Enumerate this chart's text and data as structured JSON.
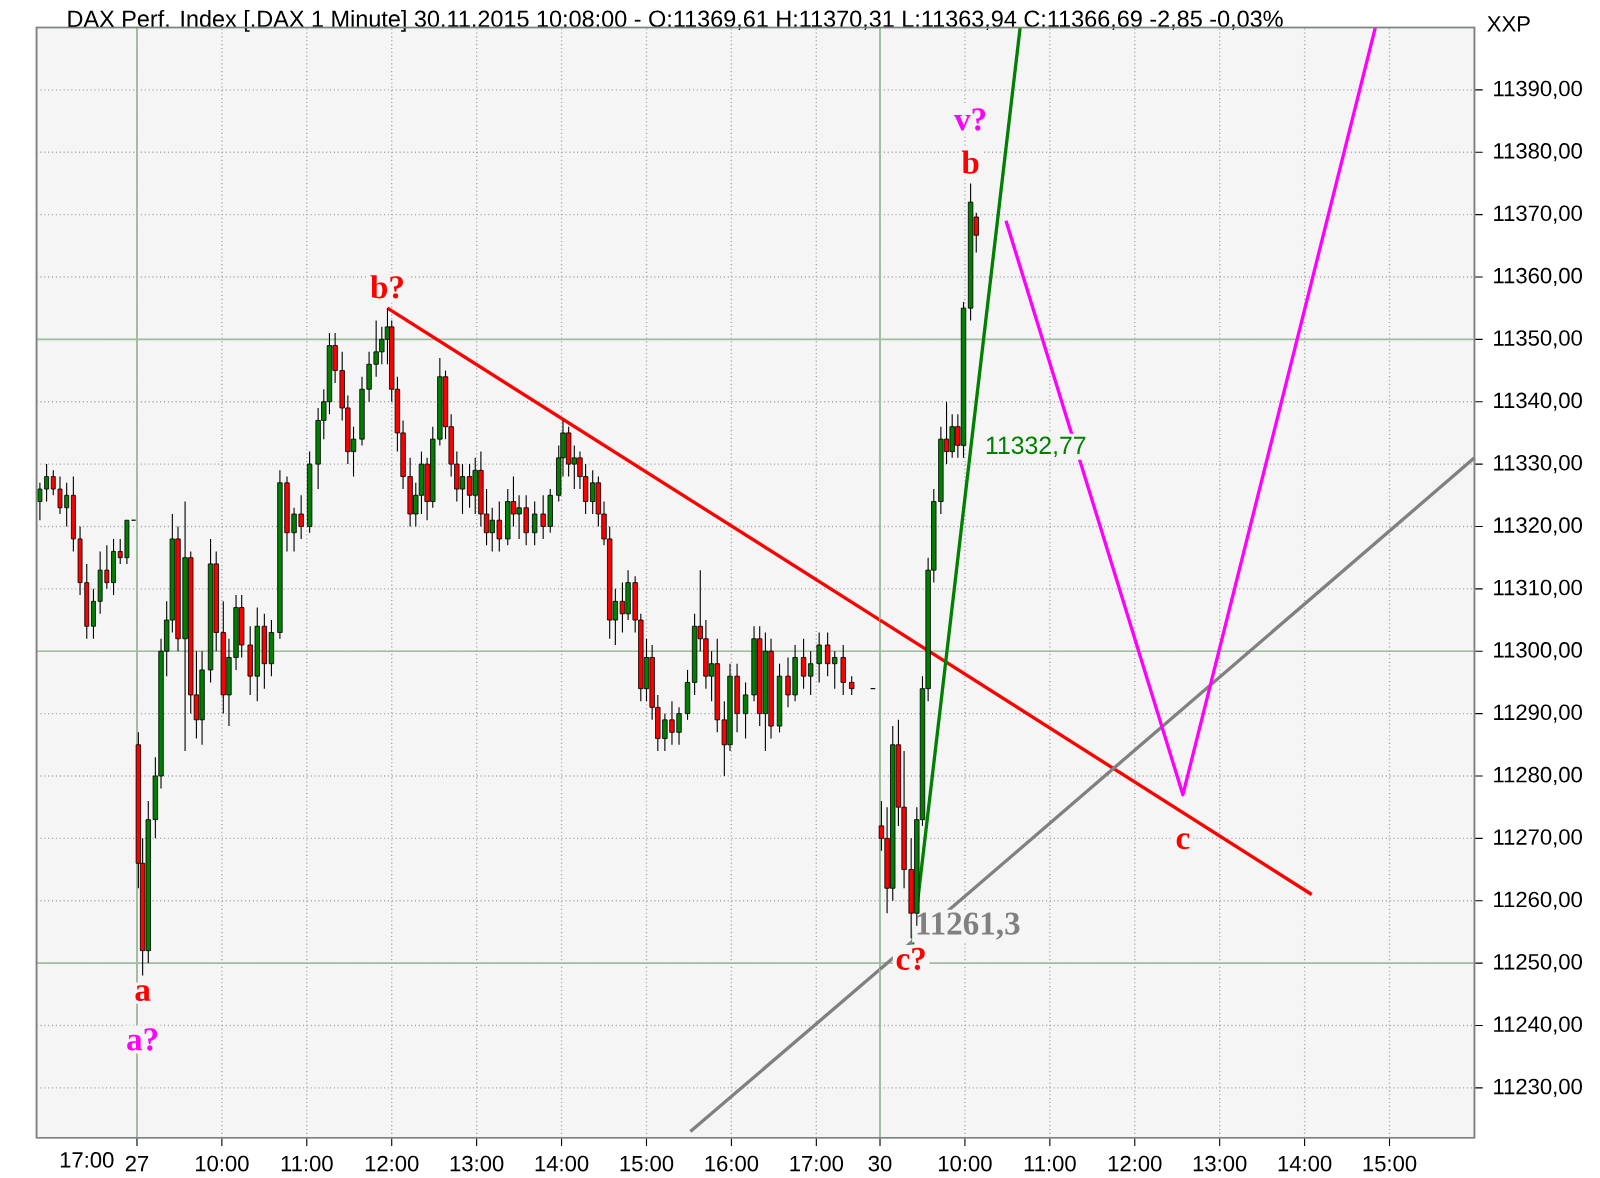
{
  "chart_data": [
    {
      "type": "candlestick",
      "title": "DAX Perf. Index [.DAX  1 Minute] 30.11.2015 10:08:00 - O:11369,61 H:11370,31 L:11363,94 C:11366,69 -2,85 -0,03%",
      "categories": [
        null,
        null,
        null,
        null,
        null,
        null,
        null,
        null,
        null,
        null,
        null,
        null,
        null,
        null,
        null
      ],
      "annotations": [
        "17:00"
      ],
      "ohlc": [
        [
          11324,
          11327,
          11321,
          11326
        ],
        [
          11326,
          11330,
          11324,
          11328
        ],
        [
          11328,
          11329,
          11325,
          11326
        ],
        [
          11326,
          11328,
          11322,
          11323
        ],
        [
          11323,
          11327,
          11320,
          11325
        ],
        [
          11325,
          11328,
          11316,
          11318
        ],
        [
          11318,
          11320,
          11309,
          11311
        ],
        [
          11311,
          11314,
          11302,
          11304
        ],
        [
          11304,
          11310,
          11302,
          11308
        ],
        [
          11308,
          11316,
          11306,
          11313
        ],
        [
          11313,
          11317,
          11310,
          11311
        ],
        [
          11311,
          11318,
          11309,
          11316
        ],
        [
          11316,
          11318,
          11314,
          11315
        ],
        [
          11315,
          11321,
          11314,
          11321
        ],
        [
          11321,
          11321,
          11321,
          11321
        ]
      ],
      "ylim": [
        11222,
        11400
      ],
      "yticks": [
        11230,
        11240,
        11250,
        11260,
        11270,
        11280,
        11290,
        11300,
        11310,
        11320,
        11330,
        11340,
        11350,
        11360,
        11370,
        11380,
        11390
      ],
      "tick_labels": false,
      "grid": "y"
    },
    {
      "type": "candlestick",
      "x": [
        "2015-11-27T09:01",
        "2015-11-27T09:04",
        "2015-11-27T09:08",
        "2015-11-27T09:13",
        "2015-11-27T09:17",
        "2015-11-27T09:21",
        "2015-11-27T09:25",
        "2015-11-27T09:29",
        "2015-11-27T09:34",
        "2015-11-27T09:38",
        "2015-11-27T09:42",
        "2015-11-27T09:46",
        "2015-11-27T09:52",
        "2015-11-27T09:56",
        "2015-11-27T10:01",
        "2015-11-27T10:05",
        "2015-11-27T10:10",
        "2015-11-27T10:14",
        "2015-11-27T10:20",
        "2015-11-27T10:25",
        "2015-11-27T10:30",
        "2015-11-27T10:35",
        "2015-11-27T10:41",
        "2015-11-27T10:46",
        "2015-11-27T10:51",
        "2015-11-27T10:56",
        "2015-11-27T11:02",
        "2015-11-27T11:08",
        "2015-11-27T11:12",
        "2015-11-27T11:16",
        "2015-11-27T11:20",
        "2015-11-27T11:25",
        "2015-11-27T11:29",
        "2015-11-27T11:33",
        "2015-11-27T11:39",
        "2015-11-27T11:44",
        "2015-11-27T11:49",
        "2015-11-27T11:53",
        "2015-11-27T11:57",
        "2015-11-27T12:00",
        "2015-11-27T12:04",
        "2015-11-27T12:08",
        "2015-11-27T12:13",
        "2015-11-27T12:17",
        "2015-11-27T12:21",
        "2015-11-27T12:25",
        "2015-11-27T12:29",
        "2015-11-27T12:34",
        "2015-11-27T12:38",
        "2015-11-27T12:42",
        "2015-11-27T12:46",
        "2015-11-27T12:50",
        "2015-11-27T12:55",
        "2015-11-27T12:59",
        "2015-11-27T13:03",
        "2015-11-27T13:07",
        "2015-11-27T13:11",
        "2015-11-27T13:16",
        "2015-11-27T13:22",
        "2015-11-27T13:26",
        "2015-11-27T13:30",
        "2015-11-27T13:35",
        "2015-11-27T13:41",
        "2015-11-27T13:47",
        "2015-11-27T13:52",
        "2015-11-27T13:58",
        "2015-11-27T14:01",
        "2015-11-27T14:05",
        "2015-11-27T14:09",
        "2015-11-27T14:13",
        "2015-11-27T14:17",
        "2015-11-27T14:22",
        "2015-11-27T14:26",
        "2015-11-27T14:30",
        "2015-11-27T14:34",
        "2015-11-27T14:38",
        "2015-11-27T14:43",
        "2015-11-27T14:47",
        "2015-11-27T14:52",
        "2015-11-27T14:56",
        "2015-11-27T15:00",
        "2015-11-27T15:04",
        "2015-11-27T15:08",
        "2015-11-27T15:13",
        "2015-11-27T15:18",
        "2015-11-27T15:23",
        "2015-11-27T15:29",
        "2015-11-27T15:34",
        "2015-11-27T15:38",
        "2015-11-27T15:42",
        "2015-11-27T15:46",
        "2015-11-27T15:50",
        "2015-11-27T15:55",
        "2015-11-27T15:59",
        "2015-11-27T16:04",
        "2015-11-27T16:10",
        "2015-11-27T16:16",
        "2015-11-27T16:20",
        "2015-11-27T16:24",
        "2015-11-27T16:28",
        "2015-11-27T16:34",
        "2015-11-27T16:40",
        "2015-11-27T16:45",
        "2015-11-27T16:51",
        "2015-11-27T16:56",
        "2015-11-27T17:02",
        "2015-11-27T17:08",
        "2015-11-27T17:13",
        "2015-11-27T17:19",
        "2015-11-27T17:25",
        "2015-11-27T17:40"
      ],
      "ohlc": [
        [
          11285,
          11287,
          11262,
          11266
        ],
        [
          11266,
          11270,
          11248,
          11252
        ],
        [
          11252,
          11276,
          11250,
          11273
        ],
        [
          11273,
          11283,
          11270,
          11280
        ],
        [
          11280,
          11302,
          11278,
          11300
        ],
        [
          11300,
          11308,
          11296,
          11305
        ],
        [
          11305,
          11322,
          11303,
          11318
        ],
        [
          11318,
          11320,
          11300,
          11302
        ],
        [
          11302,
          11324,
          11284,
          11315
        ],
        [
          11315,
          11316,
          11290,
          11293
        ],
        [
          11293,
          11300,
          11286,
          11289
        ],
        [
          11289,
          11300,
          11285,
          11297
        ],
        [
          11297,
          11318,
          11295,
          11314
        ],
        [
          11314,
          11316,
          11300,
          11303
        ],
        [
          11303,
          11308,
          11290,
          11293
        ],
        [
          11293,
          11302,
          11288,
          11299
        ],
        [
          11299,
          11309,
          11297,
          11307
        ],
        [
          11307,
          11309,
          11299,
          11301
        ],
        [
          11301,
          11304,
          11293,
          11296
        ],
        [
          11296,
          11307,
          11292,
          11304
        ],
        [
          11304,
          11306,
          11294,
          11298
        ],
        [
          11298,
          11305,
          11296,
          11303
        ],
        [
          11303,
          11329,
          11302,
          11327
        ],
        [
          11327,
          11328,
          11316,
          11319
        ],
        [
          11319,
          11323,
          11316,
          11322
        ],
        [
          11322,
          11325,
          11318,
          11320
        ],
        [
          11320,
          11332,
          11319,
          11330
        ],
        [
          11330,
          11339,
          11326,
          11337
        ],
        [
          11337,
          11342,
          11334,
          11340
        ],
        [
          11340,
          11351,
          11338,
          11349
        ],
        [
          11349,
          11351,
          11343,
          11345
        ],
        [
          11345,
          11348,
          11337,
          11339
        ],
        [
          11339,
          11341,
          11330,
          11332
        ],
        [
          11332,
          11336,
          11328,
          11334
        ],
        [
          11334,
          11344,
          11333,
          11342
        ],
        [
          11342,
          11348,
          11340,
          11346
        ],
        [
          11346,
          11353,
          11344,
          11348
        ],
        [
          11348,
          11352,
          11346,
          11350
        ],
        [
          11350,
          11355,
          11346,
          11352
        ],
        [
          11352,
          11353,
          11340,
          11342
        ],
        [
          11342,
          11344,
          11332,
          11335
        ],
        [
          11335,
          11337,
          11326,
          11328
        ],
        [
          11328,
          11331,
          11320,
          11322
        ],
        [
          11322,
          11327,
          11320,
          11325
        ],
        [
          11325,
          11332,
          11322,
          11330
        ],
        [
          11330,
          11331,
          11321,
          11324
        ],
        [
          11324,
          11336,
          11323,
          11334
        ],
        [
          11334,
          11347,
          11333,
          11344
        ],
        [
          11344,
          11345,
          11334,
          11336
        ],
        [
          11336,
          11338,
          11328,
          11330
        ],
        [
          11330,
          11332,
          11324,
          11326
        ],
        [
          11326,
          11330,
          11322,
          11328
        ],
        [
          11328,
          11330,
          11323,
          11325
        ],
        [
          11325,
          11331,
          11322,
          11329
        ],
        [
          11329,
          11332,
          11320,
          11322
        ],
        [
          11322,
          11326,
          11317,
          11319
        ],
        [
          11319,
          11323,
          11316,
          11321
        ],
        [
          11321,
          11324,
          11316,
          11318
        ],
        [
          11318,
          11326,
          11317,
          11324
        ],
        [
          11324,
          11328,
          11320,
          11322
        ],
        [
          11322,
          11325,
          11318,
          11323
        ],
        [
          11323,
          11325,
          11317,
          11319
        ],
        [
          11319,
          11324,
          11317,
          11322
        ],
        [
          11322,
          11325,
          11318,
          11320
        ],
        [
          11320,
          11326,
          11319,
          11325
        ],
        [
          11325,
          11333,
          11324,
          11331
        ],
        [
          11331,
          11337,
          11328,
          11335
        ],
        [
          11335,
          11336,
          11328,
          11330
        ],
        [
          11330,
          11333,
          11326,
          11331
        ],
        [
          11331,
          11332,
          11326,
          11328
        ],
        [
          11328,
          11330,
          11322,
          11324
        ],
        [
          11324,
          11329,
          11322,
          11327
        ],
        [
          11327,
          11328,
          11320,
          11322
        ],
        [
          11322,
          11324,
          11317,
          11318
        ],
        [
          11318,
          11320,
          11302,
          11305
        ],
        [
          11305,
          11310,
          11301,
          11308
        ],
        [
          11308,
          11311,
          11303,
          11306
        ],
        [
          11306,
          11313,
          11305,
          11311
        ],
        [
          11311,
          11312,
          11303,
          11305
        ],
        [
          11305,
          11306,
          11292,
          11294
        ],
        [
          11294,
          11302,
          11292,
          11299
        ],
        [
          11299,
          11301,
          11289,
          11291
        ],
        [
          11291,
          11293,
          11284,
          11286
        ],
        [
          11286,
          11290,
          11284,
          11289
        ],
        [
          11289,
          11292,
          11285,
          11287
        ],
        [
          11287,
          11291,
          11285,
          11290
        ],
        [
          11290,
          11297,
          11289,
          11295
        ],
        [
          11295,
          11306,
          11293,
          11304
        ],
        [
          11304,
          11313,
          11300,
          11302
        ],
        [
          11302,
          11305,
          11294,
          11296
        ],
        [
          11296,
          11300,
          11292,
          11298
        ],
        [
          11298,
          11302,
          11287,
          11289
        ],
        [
          11289,
          11292,
          11280,
          11285
        ],
        [
          11285,
          11298,
          11284,
          11296
        ],
        [
          11296,
          11298,
          11287,
          11290
        ],
        [
          11290,
          11295,
          11286,
          11293
        ],
        [
          11293,
          11304,
          11292,
          11302
        ],
        [
          11302,
          11304,
          11288,
          11290
        ],
        [
          11290,
          11303,
          11284,
          11300
        ],
        [
          11300,
          11302,
          11286,
          11288
        ],
        [
          11288,
          11298,
          11287,
          11296
        ],
        [
          11296,
          11299,
          11291,
          11293
        ],
        [
          11293,
          11301,
          11292,
          11299
        ],
        [
          11299,
          11302,
          11294,
          11296
        ],
        [
          11296,
          11300,
          11293,
          11298
        ],
        [
          11298,
          11303,
          11295,
          11301
        ],
        [
          11301,
          11303,
          11296,
          11298
        ],
        [
          11298,
          11300,
          11294,
          11299
        ],
        [
          11299,
          11301,
          11293,
          11295
        ],
        [
          11295,
          11296,
          11293,
          11294
        ],
        [
          11294,
          11294,
          11294,
          11294
        ]
      ],
      "series": [
        {
          "type": "line",
          "color": "#ff0000",
          "x": [
            "2015-11-27T11:57",
            "2015-11-27T17:45"
          ],
          "values": [
            11355,
            11305
          ]
        },
        {
          "type": "line",
          "color": "#808080",
          "x": [
            "2015-11-27T15:31",
            "2015-11-27T17:45"
          ],
          "values": [
            11223,
            11249
          ]
        }
      ],
      "annotations": [
        {
          "text": "a",
          "x": "2015-11-27T09:04",
          "y": 11248
        },
        {
          "text": "a?",
          "x": "2015-11-27T09:04",
          "y": 11248
        },
        {
          "text": "b?",
          "x": "2015-11-27T11:57",
          "y": 11355
        }
      ],
      "xlim": [
        "2015-11-27T09:00",
        "2015-11-27T17:45"
      ],
      "ylim": [
        11222,
        11400
      ],
      "xticks": [
        {
          "value": "2015-11-27T09:00",
          "label": "27"
        },
        {
          "value": "2015-11-27T10:00",
          "label": "10:00"
        },
        {
          "value": "2015-11-27T11:00",
          "label": "11:00"
        },
        {
          "value": "2015-11-27T12:00",
          "label": "12:00"
        },
        {
          "value": "2015-11-27T13:00",
          "label": "13:00"
        },
        {
          "value": "2015-11-27T14:00",
          "label": "14:00"
        },
        {
          "value": "2015-11-27T15:00",
          "label": "15:00"
        },
        {
          "value": "2015-11-27T16:00",
          "label": "16:00"
        },
        {
          "value": "2015-11-27T17:00",
          "label": "17:00"
        }
      ],
      "yticks": [
        11230,
        11240,
        11250,
        11260,
        11270,
        11280,
        11290,
        11300,
        11310,
        11320,
        11330,
        11340,
        11350,
        11360,
        11370,
        11380,
        11390
      ],
      "tick_labels": "x",
      "grid": true
    },
    {
      "type": "candlestick",
      "ylabel": "XXP",
      "x": [
        "2015-11-30T09:01",
        "2015-11-30T09:05",
        "2015-11-30T09:09",
        "2015-11-30T09:13",
        "2015-11-30T09:17",
        "2015-11-30T09:22",
        "2015-11-30T09:26",
        "2015-11-30T09:30",
        "2015-11-30T09:34",
        "2015-11-30T09:38",
        "2015-11-30T09:43",
        "2015-11-30T09:47",
        "2015-11-30T09:51",
        "2015-11-30T09:55",
        "2015-11-30T09:59",
        "2015-11-30T10:04",
        "2015-11-30T10:08"
      ],
      "ohlc": [
        [
          11272,
          11276,
          11268,
          11270
        ],
        [
          11270,
          11275,
          11258,
          11262
        ],
        [
          11262,
          11288,
          11260,
          11285
        ],
        [
          11285,
          11289,
          11272,
          11275
        ],
        [
          11275,
          11284,
          11262,
          11265
        ],
        [
          11265,
          11270,
          11254,
          11258
        ],
        [
          11258,
          11275,
          11256,
          11273
        ],
        [
          11273,
          11296,
          11272,
          11294
        ],
        [
          11294,
          11315,
          11292,
          11313
        ],
        [
          11313,
          11326,
          11311,
          11324
        ],
        [
          11324,
          11336,
          11322,
          11334
        ],
        [
          11334,
          11340,
          11330,
          11332
        ],
        [
          11332,
          11338,
          11331,
          11336
        ],
        [
          11336,
          11338,
          11331,
          11333
        ],
        [
          11333,
          11356,
          11331,
          11355
        ],
        [
          11355,
          11375,
          11353,
          11372
        ],
        [
          11369.61,
          11370.31,
          11363.94,
          11366.69
        ]
      ],
      "series": [
        {
          "type": "line",
          "color": "#ff0000",
          "x": [
            "2015-11-30T09:00",
            "2015-11-30T14:05"
          ],
          "values": [
            11305,
            11261
          ]
        },
        {
          "type": "line",
          "color": "#008000",
          "x": [
            "2015-11-30T09:23",
            "2015-11-30T10:39"
          ],
          "values": [
            11253,
            11400
          ]
        },
        {
          "type": "line",
          "color": "#808080",
          "x": [
            "2015-11-30T09:00",
            "2015-11-30T16:00"
          ],
          "values": [
            11249,
            11331
          ]
        },
        {
          "type": "line",
          "color": "#ff00ff",
          "x": [
            "2015-11-30T10:29",
            "2015-11-30T12:34",
            "2015-11-30T14:50"
          ],
          "values": [
            11369,
            11277,
            11400
          ]
        }
      ],
      "annotations": [
        {
          "text": "b",
          "x": "2015-11-30T10:04",
          "y": 11375
        },
        {
          "text": "v?",
          "x": "2015-11-30T10:04",
          "y": 11375
        },
        {
          "text": "c?",
          "x": "2015-11-30T09:22",
          "y": 11254
        },
        {
          "text": "c",
          "x": "2015-11-30T12:34",
          "y": 11274
        },
        {
          "text": "11332,77",
          "x": "2015-11-30T10:04",
          "y": 11332.77
        },
        {
          "text": "11261,3",
          "x": "2015-11-30T10:02",
          "y": 11261.3
        }
      ],
      "xlim": [
        "2015-11-30T09:00",
        "2015-11-30T16:00"
      ],
      "ylim": [
        11222,
        11400
      ],
      "xticks": [
        {
          "value": "2015-11-30T09:00",
          "label": "30"
        },
        {
          "value": "2015-11-30T10:00",
          "label": "10:00"
        },
        {
          "value": "2015-11-30T11:00",
          "label": "11:00"
        },
        {
          "value": "2015-11-30T12:00",
          "label": "12:00"
        },
        {
          "value": "2015-11-30T13:00",
          "label": "13:00"
        },
        {
          "value": "2015-11-30T14:00",
          "label": "14:00"
        },
        {
          "value": "2015-11-30T15:00",
          "label": "15:00"
        }
      ],
      "yticks": [
        {
          "value": 11230,
          "label": "11230,00"
        },
        {
          "value": 11240,
          "label": "11240,00"
        },
        {
          "value": 11250,
          "label": "11250,00"
        },
        {
          "value": 11260,
          "label": "11260,00"
        },
        {
          "value": 11270,
          "label": "11270,00"
        },
        {
          "value": 11280,
          "label": "11280,00"
        },
        {
          "value": 11290,
          "label": "11290,00"
        },
        {
          "value": 11300,
          "label": "11300,00"
        },
        {
          "value": 11310,
          "label": "11310,00"
        },
        {
          "value": 11320,
          "label": "11320,00"
        },
        {
          "value": 11330,
          "label": "11330,00"
        },
        {
          "value": 11340,
          "label": "11340,00"
        },
        {
          "value": 11350,
          "label": "11350,00"
        },
        {
          "value": 11360,
          "label": "11360,00"
        },
        {
          "value": 11370,
          "label": "11370,00"
        },
        {
          "value": 11380,
          "label": "11380,00"
        },
        {
          "value": 11390,
          "label": "11390,00"
        }
      ],
      "grid": true
    }
  ]
}
